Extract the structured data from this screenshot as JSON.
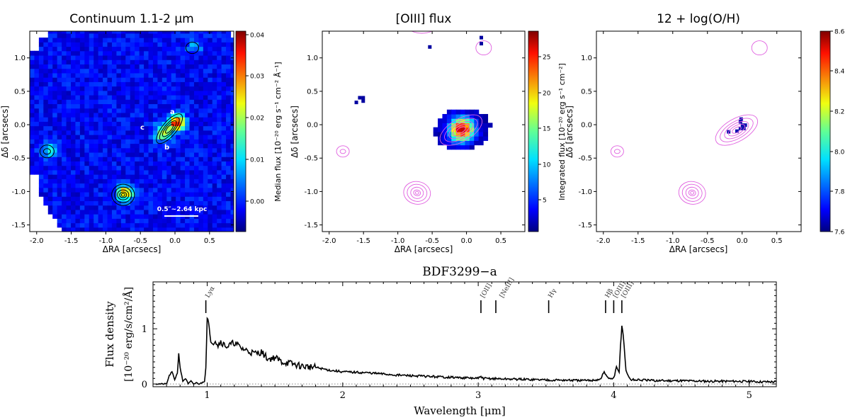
{
  "panels": [
    {
      "id": "continuum",
      "title": "Continuum 1.1-2 μm",
      "xlabel": "ΔRA [arcsecs]",
      "ylabel": "Δδ [arcsecs]",
      "colorbar_label": "Median flux [10⁻²⁰ erg s⁻¹ cm⁻² Å⁻¹]",
      "cbar_ticks": [
        "0.04",
        "0.03",
        "0.02",
        "0.01",
        "0.00"
      ],
      "labels": {
        "a": "a",
        "b": "b",
        "c": "c"
      },
      "scalebar": "0.5″~2.64 kpc"
    },
    {
      "id": "oiii",
      "title": "[OIII] flux",
      "xlabel": "ΔRA [arcsecs]",
      "ylabel": "Δδ [arcsecs]",
      "colorbar_label": "Integrated flux [10⁻²⁰ erg s⁻¹ cm⁻²]",
      "cbar_ticks": [
        "25",
        "20",
        "15",
        "10",
        "5"
      ]
    },
    {
      "id": "metallicity",
      "title": "12 + log(O/H)",
      "xlabel": "ΔRA [arcsecs]",
      "ylabel": "Δδ [arcsecs]",
      "colorbar_label": "",
      "cbar_ticks": [
        "8.6",
        "8.4",
        "8.2",
        "8.0",
        "7.8",
        "7.6"
      ]
    }
  ],
  "map_axes": {
    "xlim": [
      -2.1,
      0.85
    ],
    "ylim": [
      -1.6,
      1.4
    ],
    "xticks": [
      "-2.0",
      "-1.5",
      "-1.0",
      "-0.5",
      "0.0",
      "0.5"
    ],
    "yticks": [
      "1.0",
      "0.5",
      "0.0",
      "-0.5",
      "-1.0",
      "-1.5"
    ]
  },
  "chart_data": [
    {
      "type": "heatmap",
      "title": "Continuum 1.1-2 μm",
      "xlabel": "ΔRA [arcsecs]",
      "ylabel": "Δδ [arcsecs]",
      "xlim": [
        -2.1,
        0.85
      ],
      "ylim": [
        -1.6,
        1.4
      ],
      "colorbar": {
        "label": "Median flux [10⁻²⁰ erg s⁻¹ cm⁻² Å⁻¹]",
        "range": [
          -0.005,
          0.04
        ]
      },
      "sources": [
        {
          "x": 0.0,
          "y": 0.0,
          "peak": 0.035
        },
        {
          "x": -0.75,
          "y": -1.05,
          "peak": 0.028
        },
        {
          "x": -1.85,
          "y": -0.4,
          "peak": 0.012
        },
        {
          "x": 0.25,
          "y": 1.15,
          "peak": 0.008
        }
      ]
    },
    {
      "type": "heatmap",
      "title": "[OIII] flux",
      "xlabel": "ΔRA [arcsecs]",
      "ylabel": "Δδ [arcsecs]",
      "xlim": [
        -2.1,
        0.85
      ],
      "ylim": [
        -1.6,
        1.4
      ],
      "colorbar": {
        "label": "Integrated flux [10⁻²⁰ erg s⁻¹ cm⁻²]",
        "range": [
          1,
          28
        ]
      },
      "sources": [
        {
          "x": -0.1,
          "y": -0.1,
          "peak": 26
        }
      ]
    },
    {
      "type": "heatmap",
      "title": "12 + log(O/H)",
      "xlabel": "ΔRA [arcsecs]",
      "ylabel": "Δδ [arcsecs]",
      "xlim": [
        -2.1,
        0.85
      ],
      "ylim": [
        -1.6,
        1.4
      ],
      "colorbar": {
        "label": "",
        "range": [
          7.6,
          8.6
        ]
      }
    },
    {
      "type": "line",
      "title": "BDF3299−a",
      "xlabel": "Wavelength [μm]",
      "ylabel": "Flux density",
      "ylabel_units": "[10⁻²⁰ erg/s/cm²/Å]",
      "xlim": [
        0.6,
        5.2
      ],
      "ylim": [
        -0.05,
        1.85
      ],
      "xticks": [
        "1",
        "2",
        "3",
        "4",
        "5"
      ],
      "yticks": [
        "0",
        "1"
      ],
      "series": [
        {
          "x": [
            0.62,
            0.7,
            0.72,
            0.74,
            0.76,
            0.78,
            0.79,
            0.8,
            0.82,
            0.84,
            0.86,
            0.88,
            0.9,
            0.92,
            0.94,
            0.96,
            0.98,
            0.99,
            1.0,
            1.01,
            1.02,
            1.04,
            1.06,
            1.08,
            1.1,
            1.12,
            1.15,
            1.2,
            1.25,
            1.3,
            1.35,
            1.4,
            1.45,
            1.5,
            1.55,
            1.6,
            1.7,
            1.8,
            1.9,
            2.0,
            2.2,
            2.4,
            2.6,
            2.8,
            3.0,
            3.02,
            3.04,
            3.2,
            3.4,
            3.6,
            3.8,
            3.9,
            3.93,
            3.95,
            3.97,
            4.0,
            4.02,
            4.04,
            4.05,
            4.06,
            4.07,
            4.09,
            4.12,
            4.3,
            4.5,
            4.7,
            4.9,
            5.1,
            5.2
          ],
          "y": [
            0.0,
            0.0,
            0.15,
            0.22,
            0.08,
            0.2,
            0.55,
            0.3,
            0.05,
            0.1,
            0.0,
            0.05,
            0.0,
            0.02,
            0.0,
            0.02,
            0.05,
            0.3,
            1.2,
            1.1,
            0.85,
            0.75,
            0.8,
            0.7,
            0.78,
            0.72,
            0.68,
            0.75,
            0.65,
            0.6,
            0.55,
            0.58,
            0.45,
            0.48,
            0.4,
            0.38,
            0.32,
            0.3,
            0.25,
            0.22,
            0.2,
            0.16,
            0.14,
            0.12,
            0.1,
            0.13,
            0.1,
            0.09,
            0.08,
            0.07,
            0.06,
            0.08,
            0.22,
            0.12,
            0.1,
            0.1,
            0.3,
            0.2,
            0.7,
            1.05,
            0.9,
            0.25,
            0.08,
            0.06,
            0.06,
            0.05,
            0.05,
            0.04,
            0.04
          ]
        }
      ],
      "baseline": 0,
      "lines": [
        {
          "label": "Lyα",
          "x": 0.99
        },
        {
          "label": "[OII]",
          "x": 3.02
        },
        {
          "label": "[NeIII]",
          "x": 3.13
        },
        {
          "label": "Hγ",
          "x": 3.52
        },
        {
          "label": "Hβ",
          "x": 3.94
        },
        {
          "label": "[OIII]",
          "x": 4.0
        },
        {
          "label": "[OIII]",
          "x": 4.06
        }
      ]
    }
  ],
  "colors": {
    "contour_map": "#e060e0",
    "contour_black": "#000000",
    "baseline": "#888888",
    "spectrum": "#000000"
  }
}
